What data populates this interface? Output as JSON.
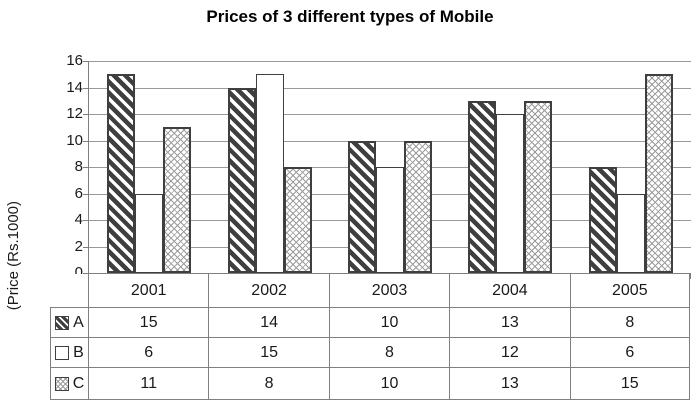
{
  "title": "Prices of 3 different types of Mobile",
  "chart_data": {
    "type": "bar",
    "title": "Prices of 3 different types of Mobile",
    "xlabel": "",
    "ylabel": "(Price (Rs.1000)",
    "categories": [
      "2001",
      "2002",
      "2003",
      "2004",
      "2005"
    ],
    "series": [
      {
        "name": "A",
        "pattern": "dark-diagonal-stripes",
        "values": [
          15,
          14,
          10,
          13,
          8
        ]
      },
      {
        "name": "B",
        "pattern": "plain-white",
        "values": [
          6,
          15,
          8,
          12,
          6
        ]
      },
      {
        "name": "C",
        "pattern": "light-crosshatch",
        "values": [
          11,
          8,
          10,
          13,
          15
        ]
      }
    ],
    "ylim": [
      0,
      16
    ],
    "ytick_step": 2,
    "grid": true,
    "legend_position": "left-of-data-table",
    "data_table_shown": true
  },
  "colors": {
    "background": "#ffffff",
    "bar_outline": "#3f3f3f",
    "gridline": "#9a9a9a",
    "axis": "#7f7f7f",
    "table_border": "#808080",
    "text": "#1a1a1a"
  }
}
